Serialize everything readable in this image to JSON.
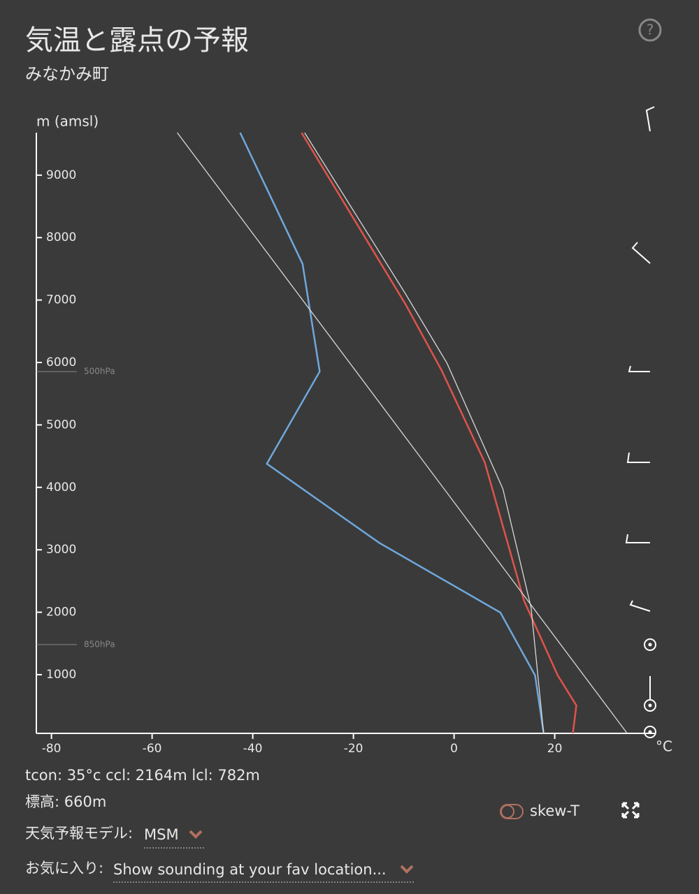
{
  "header": {
    "title": "気温と露点の予報",
    "subtitle": "みなかみ町",
    "help_icon": "?"
  },
  "chart_data": {
    "type": "line",
    "y_label": "m (amsl)",
    "x_label": "°C",
    "xlim": [
      -83,
      40
    ],
    "xticks": [
      -80,
      -60,
      -40,
      -20,
      0,
      20
    ],
    "ylim": [
      60,
      9680
    ],
    "yticks": [
      1000,
      2000,
      3000,
      4000,
      5000,
      6000,
      7000,
      8000,
      9000
    ],
    "pressure_levels": [
      {
        "label": "500hPa",
        "height": 5855
      },
      {
        "label": "850hPa",
        "height": 1482
      }
    ],
    "series": [
      {
        "color": "#e0534a",
        "x": [
          23.6,
          24.3,
          20.6,
          13.9,
          6.1,
          -2.5,
          -9.7,
          -30.3
        ],
        "values": [
          60,
          507,
          988,
          2185,
          4400,
          5877,
          6940,
          9680
        ]
      },
      {
        "color": "#6fa8dc",
        "x": [
          17.8,
          16.1,
          9.2,
          -14.9,
          -37.2,
          -26.7,
          -30.1,
          -42.5
        ],
        "values": [
          60,
          988,
          1995,
          3113,
          4378,
          5855,
          7578,
          9680
        ]
      },
      {
        "color": "#d8d8d8",
        "x": [
          34.4,
          -55
        ],
        "values": [
          60,
          9680
        ]
      },
      {
        "color": "#d8d8d8",
        "x": [
          17.8,
          15.3,
          9.7,
          -1.4,
          -9.7,
          -29.7
        ],
        "values": [
          60,
          2073,
          3975,
          5988,
          7106,
          9680
        ]
      }
    ]
  },
  "info": {
    "indices": "tcon: 35°c ccl: 2164m lcl: 782m",
    "elevation": "標高: 660m",
    "model_label": "天気予報モデル:",
    "model_value": "MSM",
    "fav_label": "お気に入り:",
    "fav_value": "Show sounding at your fav location...",
    "toggle_label": "skew-T"
  }
}
